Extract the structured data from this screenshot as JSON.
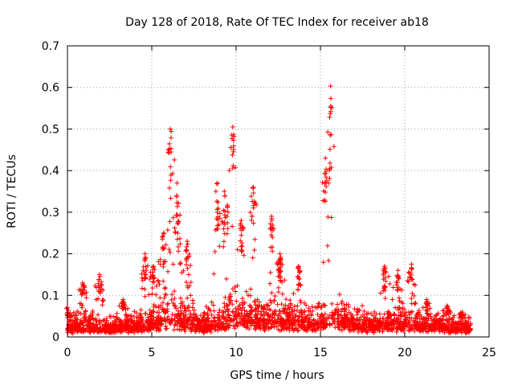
{
  "chart_data": {
    "type": "scatter",
    "title": "Day 128 of 2018, Rate Of TEC Index for receiver ab18",
    "xlabel": "GPS time / hours",
    "ylabel": "ROTI / TECUs",
    "xlim": [
      0,
      25
    ],
    "ylim": [
      0,
      0.7
    ],
    "x_ticks": [
      0,
      5,
      10,
      15,
      20,
      25
    ],
    "y_ticks": [
      0,
      0.1,
      0.2,
      0.3,
      0.4,
      0.5,
      0.6,
      0.7
    ],
    "x_tick_labels": [
      "0",
      "5",
      "10",
      "15",
      "20",
      "25"
    ],
    "y_tick_labels": [
      "0",
      "0.1",
      "0.2",
      "0.3",
      "0.4",
      "0.5",
      "0.6",
      "0.7"
    ],
    "grid": true,
    "marker": "+",
    "color": "#ff0000",
    "series": [
      {
        "name": "ROTI",
        "x_range": [
          0,
          23.9
        ],
        "baseline": [
          [
            0.0,
            0.03
          ],
          [
            1.0,
            0.035
          ],
          [
            2.0,
            0.03
          ],
          [
            3.0,
            0.03
          ],
          [
            4.0,
            0.035
          ],
          [
            5.0,
            0.045
          ],
          [
            6.0,
            0.06
          ],
          [
            7.0,
            0.05
          ],
          [
            8.0,
            0.035
          ],
          [
            9.0,
            0.05
          ],
          [
            10.0,
            0.07
          ],
          [
            11.0,
            0.06
          ],
          [
            12.0,
            0.055
          ],
          [
            13.0,
            0.05
          ],
          [
            14.0,
            0.045
          ],
          [
            15.0,
            0.05
          ],
          [
            16.0,
            0.06
          ],
          [
            17.0,
            0.04
          ],
          [
            18.0,
            0.035
          ],
          [
            19.0,
            0.045
          ],
          [
            20.0,
            0.045
          ],
          [
            21.0,
            0.04
          ],
          [
            22.0,
            0.035
          ],
          [
            23.0,
            0.03
          ],
          [
            23.9,
            0.025
          ]
        ],
        "peaks": [
          {
            "x": 0.0,
            "y": 0.07
          },
          {
            "x": 0.9,
            "y": 0.13
          },
          {
            "x": 1.9,
            "y": 0.15
          },
          {
            "x": 3.3,
            "y": 0.09
          },
          {
            "x": 4.6,
            "y": 0.2
          },
          {
            "x": 5.1,
            "y": 0.17
          },
          {
            "x": 5.7,
            "y": 0.25
          },
          {
            "x": 6.1,
            "y": 0.5
          },
          {
            "x": 6.5,
            "y": 0.37
          },
          {
            "x": 7.1,
            "y": 0.23
          },
          {
            "x": 8.9,
            "y": 0.37
          },
          {
            "x": 9.3,
            "y": 0.35
          },
          {
            "x": 9.8,
            "y": 0.505
          },
          {
            "x": 10.3,
            "y": 0.28
          },
          {
            "x": 11.0,
            "y": 0.36
          },
          {
            "x": 12.1,
            "y": 0.29
          },
          {
            "x": 12.6,
            "y": 0.2
          },
          {
            "x": 13.7,
            "y": 0.17
          },
          {
            "x": 15.3,
            "y": 0.43
          },
          {
            "x": 15.6,
            "y": 0.603
          },
          {
            "x": 18.8,
            "y": 0.17
          },
          {
            "x": 19.6,
            "y": 0.16
          },
          {
            "x": 20.4,
            "y": 0.175
          },
          {
            "x": 21.3,
            "y": 0.09
          },
          {
            "x": 22.5,
            "y": 0.075
          },
          {
            "x": 23.4,
            "y": 0.06
          }
        ]
      }
    ]
  }
}
